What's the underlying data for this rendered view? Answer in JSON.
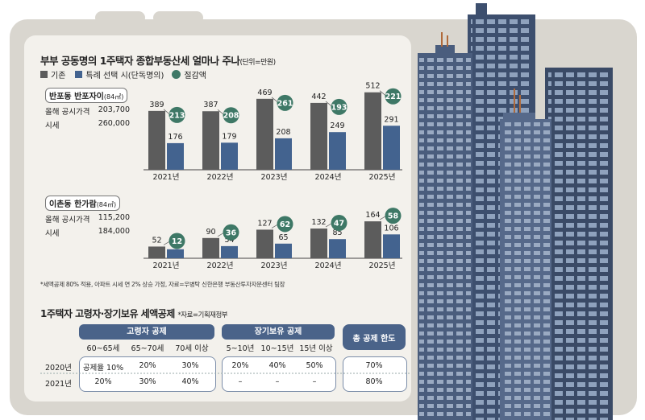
{
  "title": "부부 공동명의 1주택자 종합부동산세 얼마나 주나",
  "title_unit": "(단위=만원)",
  "legend": {
    "base": "기존",
    "special": "특례 선택 시(단독명의)",
    "saving": "절감액"
  },
  "colors": {
    "base": "#5c5c5c",
    "special": "#43638f",
    "saving": "#3e7866",
    "header": "#4a6389"
  },
  "chart_data": [
    {
      "type": "bar",
      "categories": [
        "2021년",
        "2022년",
        "2023년",
        "2024년",
        "2025년"
      ],
      "series": [
        {
          "name": "기존",
          "values": [
            389,
            387,
            469,
            442,
            512
          ]
        },
        {
          "name": "특례 선택 시(단독명의)",
          "values": [
            176,
            179,
            208,
            249,
            291
          ]
        }
      ],
      "savings": [
        213,
        208,
        261,
        193,
        221
      ]
    },
    {
      "type": "bar",
      "categories": [
        "2021년",
        "2022년",
        "2023년",
        "2024년",
        "2025년"
      ],
      "series": [
        {
          "name": "기존",
          "values": [
            52,
            90,
            127,
            132,
            164
          ]
        },
        {
          "name": "특례 선택 시(단독명의)",
          "values": [
            40,
            54,
            65,
            85,
            106
          ]
        }
      ],
      "savings": [
        12,
        36,
        62,
        47,
        58
      ]
    }
  ],
  "property1": {
    "name": "반포동 반포자이",
    "area": "(84㎡)",
    "rows": [
      [
        "올해 공시가격",
        "203,700"
      ],
      [
        "시세",
        "260,000"
      ]
    ]
  },
  "property2": {
    "name": "이촌동 한가람",
    "area": "(84㎡)",
    "rows": [
      [
        "올해 공시가격",
        "115,200"
      ],
      [
        "시세",
        "184,000"
      ]
    ]
  },
  "note": "*세액공제 80% 적용, 아파트 시세 연 2% 상승 가정, 자료=우병탁 신한은행 부동산투자자문센터 팀장",
  "table": {
    "title": "1주택자 고령자·장기보유 세액공제",
    "source": "*자료=기획재정부",
    "group_elderly": "고령자 공제",
    "group_long": "장기보유 공제",
    "group_total": "총 공제 한도",
    "elderly_cols": [
      "60~65세",
      "65~70세",
      "70세 이상"
    ],
    "long_cols": [
      "5~10년",
      "10~15년",
      "15년 이상"
    ],
    "years": [
      "2020년",
      "2021년"
    ],
    "elderly_rows": [
      [
        "공제율 10%",
        "20%",
        "30%"
      ],
      [
        "20%",
        "30%",
        "40%"
      ]
    ],
    "long_rows": [
      [
        "20%",
        "40%",
        "50%"
      ],
      [
        "–",
        "–",
        "–"
      ]
    ],
    "total_rows": [
      "70%",
      "80%"
    ]
  }
}
